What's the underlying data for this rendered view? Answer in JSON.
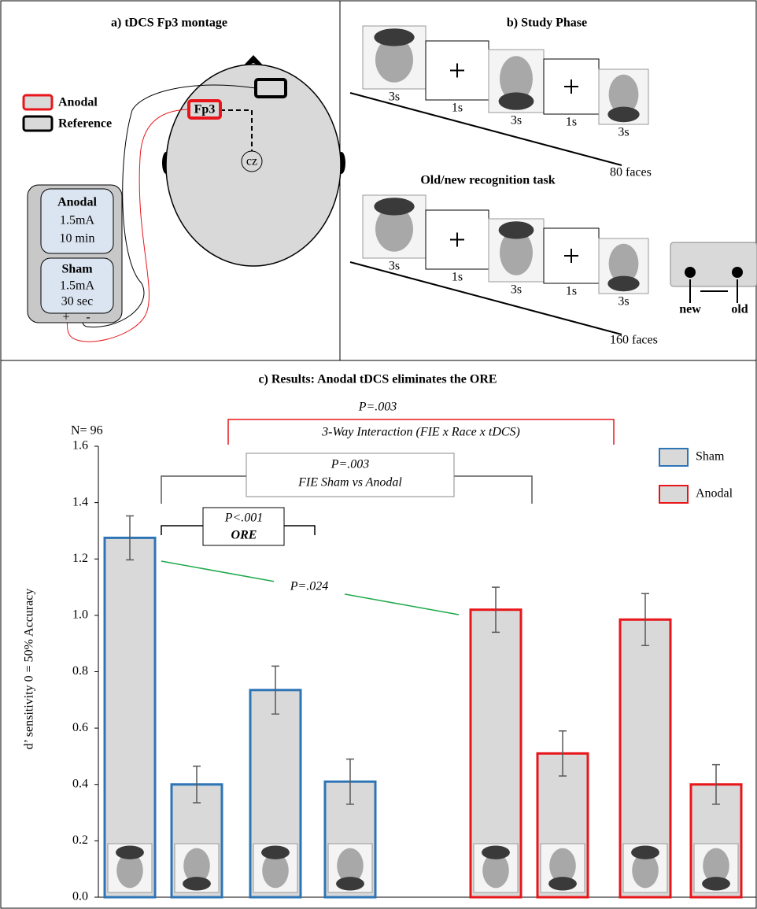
{
  "panel_a": {
    "title": "a) tDCS Fp3 montage",
    "legend": [
      "Anodal",
      "Reference"
    ],
    "electrode": "Fp3",
    "reference_point": "cz",
    "device": [
      {
        "name": "Anodal",
        "current": "1.5mA",
        "duration": "10 min"
      },
      {
        "name": "Sham",
        "current": "1.5mA",
        "duration": "30 sec"
      }
    ],
    "terminals": [
      "+",
      "-"
    ]
  },
  "panel_b": {
    "study": {
      "title": "b) Study Phase",
      "durations": [
        "3s",
        "1s",
        "3s",
        "1s",
        "3s"
      ],
      "count": "80 faces"
    },
    "test": {
      "title": "Old/new recognition task",
      "durations": [
        "3s",
        "1s",
        "3s",
        "1s",
        "3s"
      ],
      "count": "160 faces",
      "responses": [
        "new",
        "old"
      ]
    }
  },
  "chart_data": {
    "type": "bar",
    "title": "c) Results:  Anodal tDCS eliminates the ORE",
    "y_label": "d’ sensitivity 0 = 50% Accuracy",
    "sample_size": "N= 96",
    "interaction": {
      "p": "P=.003",
      "label": "3-Way Interaction (FIE x Race x tDCS)"
    },
    "fie": {
      "p": "P=.003",
      "label": "FIE Sham vs Anodal"
    },
    "ore": {
      "p": "P<.001",
      "label": "ORE"
    },
    "sham_anodal": {
      "p": "P=.024"
    },
    "ylim": [
      0,
      1.6
    ],
    "yticks": [
      {
        "value": 0,
        "label": "0.0"
      },
      {
        "value": 0.2,
        "label": "0.2"
      },
      {
        "value": 0.4,
        "label": "0.4"
      },
      {
        "value": 0.6,
        "label": "0.6"
      },
      {
        "value": 0.8,
        "label": "0.8"
      },
      {
        "value": 1,
        "label": "1.0"
      },
      {
        "value": 1.2,
        "label": "1.2"
      },
      {
        "value": 1.4,
        "label": "1.4"
      },
      {
        "value": 1.6,
        "label": "1.6"
      }
    ],
    "bar_fill": "#d9d9d9",
    "legend": "upper right",
    "series": [
      {
        "name": "Sham",
        "color": "#2e75b6",
        "values": [
          1.275,
          0.4,
          0.735,
          0.41
        ],
        "errors": [
          0.078,
          0.065,
          0.085,
          0.08
        ]
      },
      {
        "name": "Anodal",
        "color": "#e8161b",
        "values": [
          1.02,
          0.51,
          0.985,
          0.4
        ],
        "errors": [
          0.08,
          0.08,
          0.092,
          0.07
        ]
      }
    ]
  }
}
